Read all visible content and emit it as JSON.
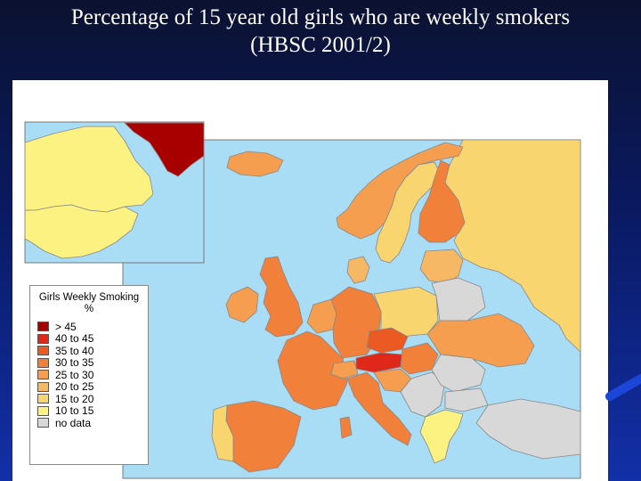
{
  "slide": {
    "title_line1": "Percentage of 15 year old girls who are weekly smokers",
    "title_line2": "(HBSC 2001/2)"
  },
  "legend": {
    "title": "Girls Weekly Smoking",
    "unit": "%",
    "items": [
      {
        "label": "> 45",
        "color": "#a80000"
      },
      {
        "label": "40 to 45",
        "color": "#e0281a"
      },
      {
        "label": "35 to 40",
        "color": "#ec5a24"
      },
      {
        "label": "30 to 35",
        "color": "#f0803a"
      },
      {
        "label": "25 to 30",
        "color": "#f59e50"
      },
      {
        "label": "20 to 25",
        "color": "#f7b866"
      },
      {
        "label": "15 to 20",
        "color": "#f9d570"
      },
      {
        "label": "10 to 15",
        "color": "#fbf282"
      },
      {
        "label": "no data",
        "color": "#d8d8d8"
      }
    ]
  },
  "map": {
    "sea_color": "#a9dcf5",
    "icons": [
      "north-america-inset",
      "europe-map"
    ]
  }
}
